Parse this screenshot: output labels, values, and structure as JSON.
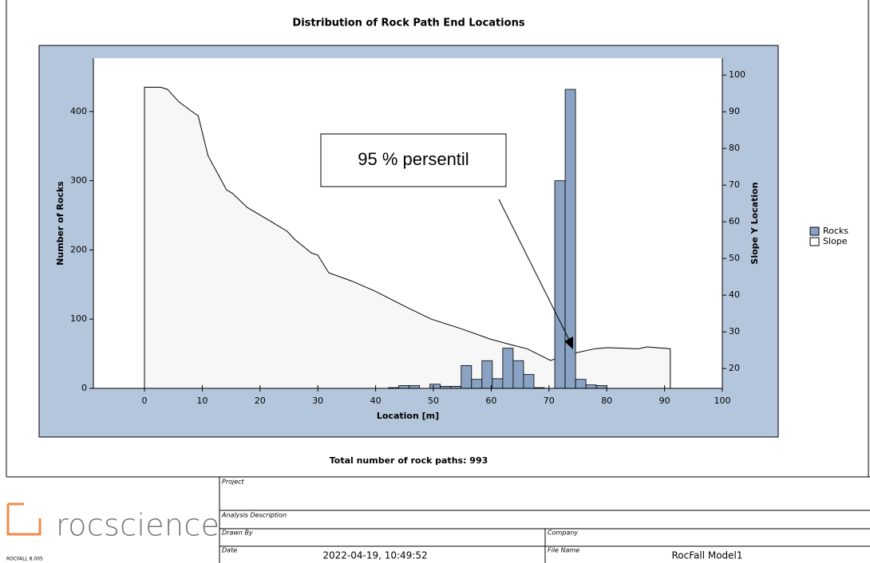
{
  "chart_data": {
    "type": "histogram",
    "title": "Distribution of Rock Path End Locations",
    "xlabel": "Location [m]",
    "ylabel": "Number of Rocks",
    "y2label": "Slope Y Location",
    "xlim": [
      -8.84,
      100
    ],
    "xticks": [
      0,
      10,
      20,
      30,
      40,
      50,
      60,
      70,
      80,
      90,
      100
    ],
    "ylim": [
      0,
      477
    ],
    "yticks": [
      0,
      100,
      200,
      300,
      400
    ],
    "y2lim": [
      14.6,
      104.6
    ],
    "y2ticks": [
      20,
      30,
      40,
      50,
      60,
      70,
      80,
      90,
      100
    ],
    "legend": "right",
    "series": [
      {
        "name": "Rocks",
        "type": "histogram",
        "color": "#8aa2c4",
        "bins": [
          42.2,
          44.0,
          45.8,
          47.6,
          49.4,
          51.2,
          53.0,
          54.8,
          56.6,
          58.4,
          60.2,
          62.0,
          63.8,
          65.6,
          67.4,
          69.2,
          71.0,
          72.8,
          74.6,
          76.4,
          78.2,
          80.0
        ],
        "values": [
          1,
          4,
          4,
          0,
          6,
          3,
          3,
          33,
          13,
          40,
          14,
          58,
          40,
          20,
          1,
          0,
          300,
          432,
          13,
          5,
          4
        ]
      },
      {
        "name": "Slope",
        "type": "area",
        "color": "#f7f7f7",
        "axis": "y2",
        "x": [
          0,
          2.8,
          4,
          5.9,
          8.1,
          9.3,
          11,
          14.2,
          15.2,
          17.8,
          22,
          24.7,
          26,
          28.9,
          30,
          31.9,
          35.8,
          39.9,
          45.4,
          49.6,
          55.1,
          59.9,
          63.4,
          66.2,
          70.3,
          72.2,
          74.4,
          77.9,
          80,
          85.5,
          86.9,
          91
        ],
        "values": [
          96.7,
          96.7,
          96.1,
          92.8,
          90.2,
          88.9,
          78,
          68.7,
          67.8,
          63.9,
          60,
          57.4,
          55.2,
          51.5,
          50.9,
          46.1,
          43.9,
          41.1,
          36.7,
          33.5,
          30.7,
          28,
          26.5,
          25.4,
          22.2,
          23.4,
          24.2,
          25.4,
          25.7,
          25.4,
          25.9,
          25.4
        ]
      }
    ],
    "annotation": "95 % persentil"
  },
  "report": {
    "note": "Total number of rock paths:  993",
    "logo": "rocscience",
    "version": "ROCFALL 8.005",
    "labels": {
      "project": "Project",
      "analysis": "Analysis Description",
      "drawn_by": "Drawn By",
      "company": "Company",
      "date": "Date",
      "file_name": "File Name"
    },
    "date": "2022-04-19, 10:49:52",
    "file_name": "RocFall Model1"
  }
}
